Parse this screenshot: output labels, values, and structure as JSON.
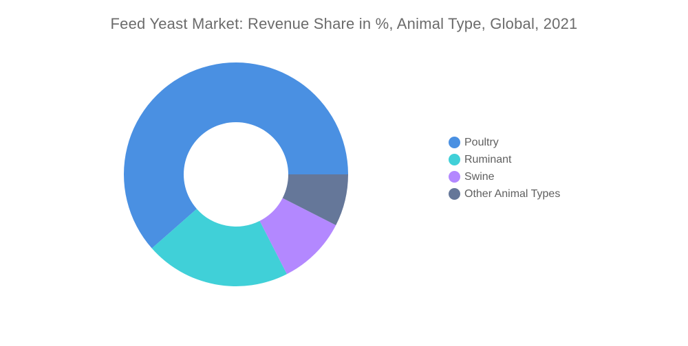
{
  "chart_data": {
    "type": "pie",
    "title": "Feed Yeast Market: Revenue Share in %, Animal Type, Global, 2021",
    "categories": [
      "Poultry",
      "Ruminant",
      "Swine",
      "Other Animal Types"
    ],
    "values": [
      61.5,
      21,
      10,
      7.5
    ],
    "colors": [
      "#4a90e2",
      "#40d0d8",
      "#b388ff",
      "#657799"
    ],
    "legend_position": "right",
    "donut": true
  }
}
